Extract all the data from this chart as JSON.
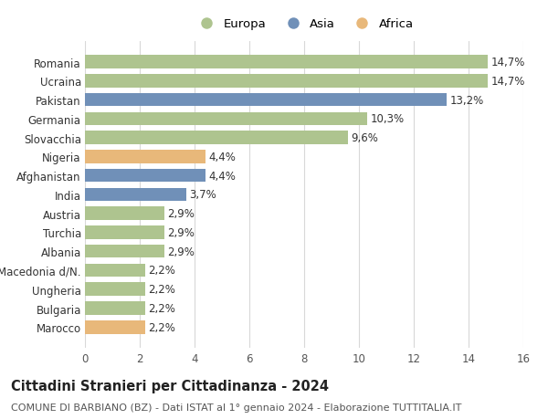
{
  "categories": [
    "Marocco",
    "Bulgaria",
    "Ungheria",
    "Macedonia d/N.",
    "Albania",
    "Turchia",
    "Austria",
    "India",
    "Afghanistan",
    "Nigeria",
    "Slovacchia",
    "Germania",
    "Pakistan",
    "Ucraina",
    "Romania"
  ],
  "values": [
    2.2,
    2.2,
    2.2,
    2.2,
    2.9,
    2.9,
    2.9,
    3.7,
    4.4,
    4.4,
    9.6,
    10.3,
    13.2,
    14.7,
    14.7
  ],
  "labels": [
    "2,2%",
    "2,2%",
    "2,2%",
    "2,2%",
    "2,9%",
    "2,9%",
    "2,9%",
    "3,7%",
    "4,4%",
    "4,4%",
    "9,6%",
    "10,3%",
    "13,2%",
    "14,7%",
    "14,7%"
  ],
  "continents": [
    "Africa",
    "Europa",
    "Europa",
    "Europa",
    "Europa",
    "Europa",
    "Europa",
    "Asia",
    "Asia",
    "Africa",
    "Europa",
    "Europa",
    "Asia",
    "Europa",
    "Europa"
  ],
  "colors": {
    "Europa": "#aec48f",
    "Asia": "#7090b8",
    "Africa": "#e8b87a"
  },
  "legend_items": [
    "Europa",
    "Asia",
    "Africa"
  ],
  "xlim": [
    0,
    16
  ],
  "xticks": [
    0,
    2,
    4,
    6,
    8,
    10,
    12,
    14,
    16
  ],
  "title": "Cittadini Stranieri per Cittadinanza - 2024",
  "subtitle": "COMUNE DI BARBIANO (BZ) - Dati ISTAT al 1° gennaio 2024 - Elaborazione TUTTITALIA.IT",
  "bar_height": 0.7,
  "background_color": "#ffffff",
  "grid_color": "#d8d8d8",
  "label_fontsize": 8.5,
  "tick_fontsize": 8.5,
  "title_fontsize": 10.5,
  "subtitle_fontsize": 8,
  "legend_fontsize": 9.5
}
